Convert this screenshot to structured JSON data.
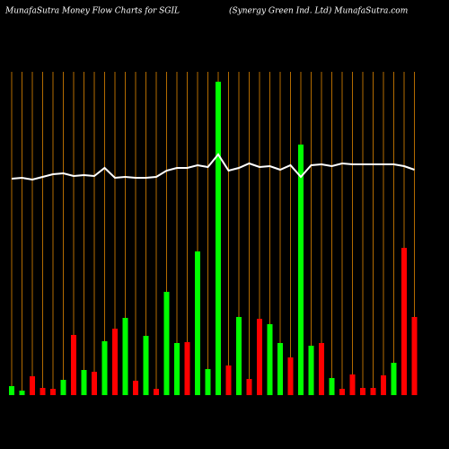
{
  "chart_data": {
    "type": "bar",
    "title": "MunafaSutra  Money  Flow  Charts for SGIL",
    "subtitle": "(Synergy  Green  Ind. Ltd) MunafaSutra.com",
    "categories": [
      null,
      null,
      null,
      null,
      null,
      null,
      null,
      null,
      null,
      null,
      null,
      null,
      null,
      null,
      null,
      null,
      null,
      null,
      null,
      null,
      null,
      null,
      null,
      null,
      null,
      null,
      null,
      null,
      null,
      null,
      null,
      null,
      null,
      null,
      null,
      null,
      null,
      null,
      null,
      null
    ],
    "series": [
      {
        "values": [
          10,
          5,
          21,
          8,
          7,
          17,
          67,
          28,
          26,
          60,
          74,
          86,
          16,
          66,
          7,
          115,
          58,
          59,
          160,
          29,
          349,
          33,
          87,
          18,
          85,
          79,
          58,
          42,
          279,
          55,
          58,
          19,
          7,
          23,
          8,
          8,
          22,
          36,
          164,
          87
        ],
        "colors": [
          "#00ff00",
          "#00ff00",
          "#ff0000",
          "#ff0000",
          "#ff0000",
          "#00ff00",
          "#ff0000",
          "#00ff00",
          "#ff0000",
          "#00ff00",
          "#ff0000",
          "#00ff00",
          "#ff0000",
          "#00ff00",
          "#ff0000",
          "#00ff00",
          "#00ff00",
          "#ff0000",
          "#00ff00",
          "#00ff00",
          "#00ff00",
          "#ff0000",
          "#00ff00",
          "#ff0000",
          "#ff0000",
          "#00ff00",
          "#00ff00",
          "#ff0000",
          "#00ff00",
          "#00ff00",
          "#ff0000",
          "#00ff00",
          "#ff0000",
          "#ff0000",
          "#ff0000",
          "#ff0000",
          "#ff0000",
          "#00ff00",
          "#ff0000",
          "#ff0000"
        ]
      },
      {
        "type": "line",
        "color": "#ffffff",
        "values": [
          241,
          242,
          240,
          243,
          246,
          247,
          244,
          245,
          244,
          253,
          242,
          243,
          242,
          242,
          243,
          250,
          253,
          253,
          256,
          254,
          268,
          250,
          253,
          258,
          254,
          255,
          251,
          256,
          243,
          256,
          257,
          255,
          258,
          257,
          257,
          257,
          257,
          257,
          255,
          251
        ]
      }
    ],
    "ylim": [
      0,
      360
    ],
    "grid_color": "#b36b00"
  }
}
